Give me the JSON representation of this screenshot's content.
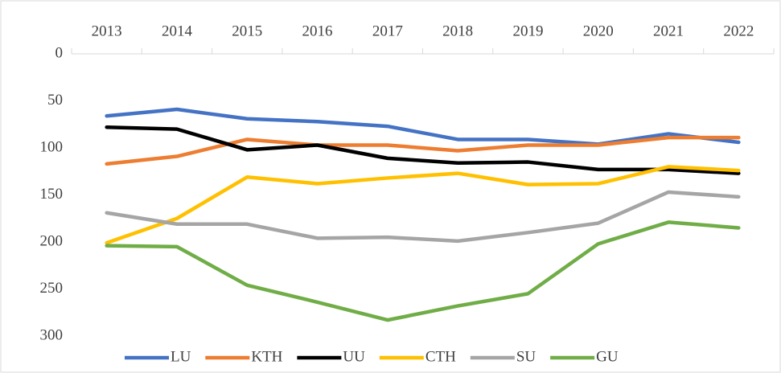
{
  "chart_data": {
    "type": "line",
    "categories": [
      "2013",
      "2014",
      "2015",
      "2016",
      "2017",
      "2018",
      "2019",
      "2020",
      "2021",
      "2022"
    ],
    "series": [
      {
        "name": "LU",
        "color": "#4472c4",
        "values": [
          66,
          59,
          69,
          72,
          77,
          91,
          91,
          96,
          85,
          94
        ]
      },
      {
        "name": "KTH",
        "color": "#ed7d31",
        "values": [
          117,
          109,
          91,
          97,
          97,
          103,
          97,
          97,
          89,
          89
        ]
      },
      {
        "name": "UU",
        "color": "#000000",
        "values": [
          78,
          80,
          102,
          97,
          111,
          116,
          115,
          123,
          123,
          127
        ]
      },
      {
        "name": "CTH",
        "color": "#ffc000",
        "values": [
          201,
          175,
          131,
          138,
          132,
          127,
          139,
          138,
          120,
          124
        ]
      },
      {
        "name": "SU",
        "color": "#a5a5a5",
        "values": [
          169,
          181,
          181,
          196,
          195,
          199,
          190,
          180,
          147,
          152
        ]
      },
      {
        "name": "GU",
        "color": "#70ad47",
        "values": [
          204,
          205,
          246,
          264,
          283,
          268,
          255,
          202,
          179,
          185
        ]
      }
    ],
    "ylim": [
      0,
      300
    ],
    "yticks": [
      0,
      50,
      100,
      150,
      200,
      250,
      300
    ],
    "y_inverted": true,
    "legend": "bottom"
  }
}
